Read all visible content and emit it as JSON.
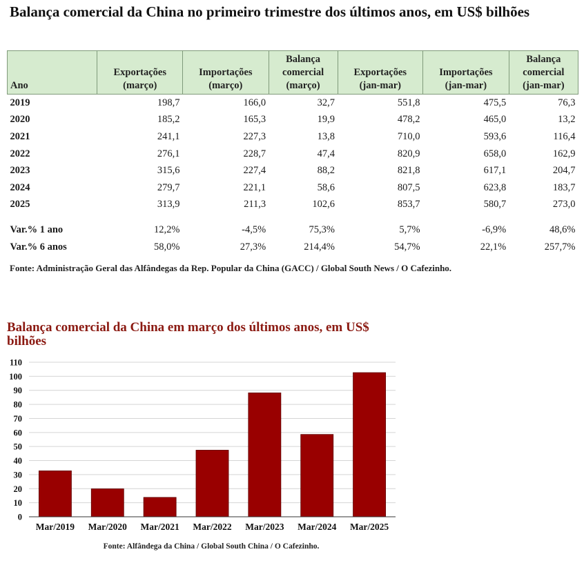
{
  "table": {
    "title": "Balança comercial da China no primeiro trimestre dos últimos anos, em US$ bilhões",
    "headers": [
      [
        "Ano"
      ],
      [
        "Exportações",
        "(março)"
      ],
      [
        "Importações",
        "(março)"
      ],
      [
        "Balança",
        "comercial",
        "(março)"
      ],
      [
        "Exportações",
        "(jan-mar)"
      ],
      [
        "Importações",
        "(jan-mar)"
      ],
      [
        "Balança",
        "comercial",
        "(jan-mar)"
      ]
    ],
    "rows": [
      [
        "2019",
        "198,7",
        "166,0",
        "32,7",
        "551,8",
        "475,5",
        "76,3"
      ],
      [
        "2020",
        "185,2",
        "165,3",
        "19,9",
        "478,2",
        "465,0",
        "13,2"
      ],
      [
        "2021",
        "241,1",
        "227,3",
        "13,8",
        "710,0",
        "593,6",
        "116,4"
      ],
      [
        "2022",
        "276,1",
        "228,7",
        "47,4",
        "820,9",
        "658,0",
        "162,9"
      ],
      [
        "2023",
        "315,6",
        "227,4",
        "88,2",
        "821,8",
        "617,1",
        "204,7"
      ],
      [
        "2024",
        "279,7",
        "221,1",
        "58,6",
        "807,5",
        "623,8",
        "183,7"
      ],
      [
        "2025",
        "313,9",
        "211,3",
        "102,6",
        "853,7",
        "580,7",
        "273,0"
      ]
    ],
    "variation_rows": [
      [
        "Var.% 1 ano",
        "12,2%",
        "-4,5%",
        "75,3%",
        "5,7%",
        "-6,9%",
        "48,6%"
      ],
      [
        "Var.% 6 anos",
        "58,0%",
        "27,3%",
        "214,4%",
        "54,7%",
        "22,1%",
        "257,7%"
      ]
    ],
    "source": "Fonte: Administração Geral das Alfândegas da Rep. Popular da China (GACC) / Global South News / O Cafezinho."
  },
  "chart_data": {
    "type": "bar",
    "title": "Balança comercial da China em março dos últimos anos, em US$ bilhões",
    "xlabel": "",
    "ylabel": "",
    "categories": [
      "Mar/2019",
      "Mar/2020",
      "Mar/2021",
      "Mar/2022",
      "Mar/2023",
      "Mar/2024",
      "Mar/2025"
    ],
    "values": [
      32.7,
      19.9,
      13.8,
      47.4,
      88.2,
      58.6,
      102.6
    ],
    "ylim": [
      0,
      110
    ],
    "yticks": [
      0,
      10,
      20,
      30,
      40,
      50,
      60,
      70,
      80,
      90,
      100,
      110
    ],
    "grid": true,
    "legend": "none",
    "bar_color": "#990000",
    "title_color": "#8b1a12",
    "source": "Fonte: Alfândega da China / Global South China / O Cafezinho."
  }
}
